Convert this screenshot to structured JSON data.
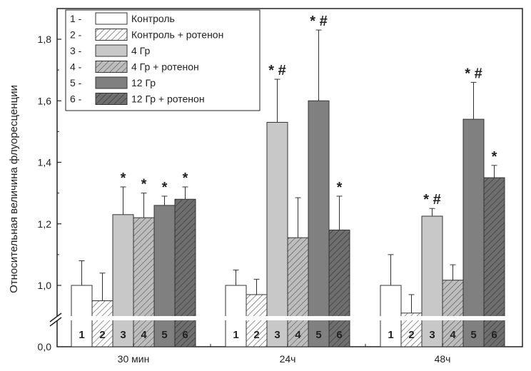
{
  "chart_data": {
    "type": "bar",
    "ylabel": "Относительная величина флуоресценции",
    "xlabel": "",
    "ylim": [
      0.9,
      1.9
    ],
    "axis_break": true,
    "y_ticks": [
      "0,0",
      "1,0",
      "1,2",
      "1,4",
      "1,6",
      "1,8"
    ],
    "y_tick_values": [
      1.0,
      1.2,
      1.4,
      1.6,
      1.8
    ],
    "y_zero_label": "0,0",
    "categories": [
      "30 мин",
      "24ч",
      "48ч"
    ],
    "series": [
      {
        "id": "1",
        "name": "Контроль",
        "legend_prefix": "1 -",
        "fill": "#ffffff",
        "pattern": "none",
        "values": [
          1.0,
          1.0,
          1.0
        ],
        "errors": [
          0.08,
          0.05,
          0.1
        ],
        "marks": [
          "",
          "",
          ""
        ]
      },
      {
        "id": "2",
        "name": "Контроль + ротенон",
        "legend_prefix": "2 -",
        "fill": "#ffffff",
        "pattern": "hatch",
        "values": [
          0.95,
          0.97,
          0.91
        ],
        "errors": [
          0.09,
          0.05,
          0.06
        ],
        "marks": [
          "",
          "",
          ""
        ]
      },
      {
        "id": "3",
        "name": "4 Гр",
        "legend_prefix": "3 -",
        "fill": "#c8c8c8",
        "pattern": "none",
        "values": [
          1.23,
          1.53,
          1.225
        ],
        "errors": [
          0.09,
          0.14,
          0.025
        ],
        "marks": [
          "*",
          "* #",
          "* #"
        ]
      },
      {
        "id": "4",
        "name": "4 Гр + ротенон",
        "legend_prefix": "4 -",
        "fill": "#bdbdbd",
        "pattern": "hatch",
        "values": [
          1.22,
          1.155,
          1.017
        ],
        "errors": [
          0.08,
          0.13,
          0.05
        ],
        "marks": [
          "*",
          "",
          ""
        ]
      },
      {
        "id": "5",
        "name": "12 Гр",
        "legend_prefix": "5 -",
        "fill": "#808080",
        "pattern": "none",
        "values": [
          1.26,
          1.6,
          1.54
        ],
        "errors": [
          0.03,
          0.23,
          0.12
        ],
        "marks": [
          "*",
          "* #",
          "* #"
        ]
      },
      {
        "id": "6",
        "name": "12 Гр + ротенон",
        "legend_prefix": "6 -",
        "fill": "#6e6e6e",
        "pattern": "hatch",
        "values": [
          1.28,
          1.18,
          1.35
        ],
        "errors": [
          0.04,
          0.11,
          0.04
        ],
        "marks": [
          "*",
          "*",
          "*"
        ]
      }
    ],
    "grid": false,
    "legend_position": "top-left"
  }
}
